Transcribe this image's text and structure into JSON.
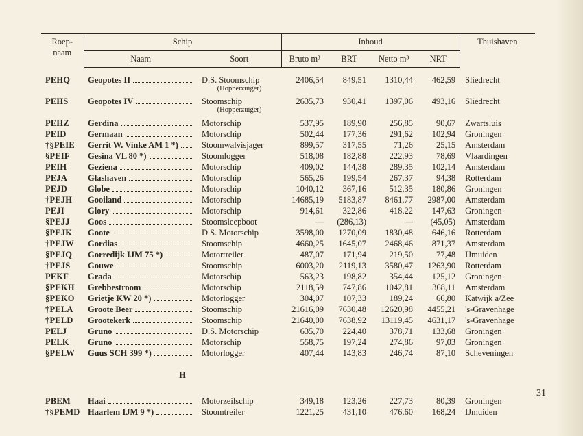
{
  "header": {
    "roepnaam": "Roep-\nnaam",
    "schip": "Schip",
    "naam": "Naam",
    "soort": "Soort",
    "inhoud": "Inhoud",
    "bruto": "Bruto m³",
    "brt": "BRT",
    "netto": "Netto m³",
    "nrt": "NRT",
    "thuishaven": "Thuishaven"
  },
  "section_letter": "H",
  "page_number": "31",
  "rows": [
    {
      "roep": "PEHQ",
      "naam": "Geopotes II",
      "soort": "D.S. Stoomschip",
      "soort_sub": "(Hopperzuiger)",
      "bruto": "2406,54",
      "brt": "849,51",
      "netto": "1310,44",
      "nrt": "462,59",
      "haven": "Sliedrecht",
      "gap_after": true
    },
    {
      "roep": "PEHS",
      "naam": "Geopotes IV",
      "soort": "Stoomschip",
      "soort_sub": "(Hopperzuiger)",
      "bruto": "2635,73",
      "brt": "930,41",
      "netto": "1397,06",
      "nrt": "493,16",
      "haven": "Sliedrecht",
      "gap_after": true
    },
    {
      "roep": "PEHZ",
      "naam": "Gerdina",
      "soort": "Motorschip",
      "bruto": "537,95",
      "brt": "189,90",
      "netto": "256,85",
      "nrt": "90,67",
      "haven": "Zwartsluis"
    },
    {
      "roep": "PEID",
      "naam": "Germaan",
      "soort": "Motorschip",
      "bruto": "502,44",
      "brt": "177,36",
      "netto": "291,62",
      "nrt": "102,94",
      "haven": "Groningen"
    },
    {
      "roep": "†§PEIE",
      "naam": "Gerrit W. Vinke AM 1 *)",
      "soort": "Stoomwalvisjager",
      "bruto": "899,57",
      "brt": "317,55",
      "netto": "71,26",
      "nrt": "25,15",
      "haven": "Amsterdam"
    },
    {
      "roep": "§PEIF",
      "naam": "Gesina VL 80 *)",
      "soort": "Stoomlogger",
      "bruto": "518,08",
      "brt": "182,88",
      "netto": "222,93",
      "nrt": "78,69",
      "haven": "Vlaardingen"
    },
    {
      "roep": "PEIH",
      "naam": "Geziena",
      "soort": "Motorschip",
      "bruto": "409,02",
      "brt": "144,38",
      "netto": "289,35",
      "nrt": "102,14",
      "haven": "Amsterdam"
    },
    {
      "roep": "PEJA",
      "naam": "Glashaven",
      "soort": "Motorschip",
      "bruto": "565,26",
      "brt": "199,54",
      "netto": "267,37",
      "nrt": "94,38",
      "haven": "Rotterdam"
    },
    {
      "roep": "PEJD",
      "naam": "Globe",
      "soort": "Motorschip",
      "bruto": "1040,12",
      "brt": "367,16",
      "netto": "512,35",
      "nrt": "180,86",
      "haven": "Groningen"
    },
    {
      "roep": "†PEJH",
      "naam": "Gooiland",
      "soort": "Motorschip",
      "bruto": "14685,19",
      "brt": "5183,87",
      "netto": "8461,77",
      "nrt": "2987,00",
      "haven": "Amsterdam"
    },
    {
      "roep": "PEJI",
      "naam": "Glory",
      "soort": "Motorschip",
      "bruto": "914,61",
      "brt": "322,86",
      "netto": "418,22",
      "nrt": "147,63",
      "haven": "Groningen"
    },
    {
      "roep": "§PEJJ",
      "naam": "Goos",
      "soort": "Stoomsleepboot",
      "bruto": "—",
      "brt": "(286,13)",
      "netto": "—",
      "nrt": "(45,05)",
      "haven": "Amsterdam"
    },
    {
      "roep": "§PEJK",
      "naam": "Goote",
      "soort": "D.S. Motorschip",
      "bruto": "3598,00",
      "brt": "1270,09",
      "netto": "1830,48",
      "nrt": "646,16",
      "haven": "Rotterdam"
    },
    {
      "roep": "†PEJW",
      "naam": "Gordias",
      "soort": "Stoomschip",
      "bruto": "4660,25",
      "brt": "1645,07",
      "netto": "2468,46",
      "nrt": "871,37",
      "haven": "Amsterdam"
    },
    {
      "roep": "§PEJQ",
      "naam": "Gorredijk IJM 75 *)",
      "soort": "Motortreiler",
      "bruto": "487,07",
      "brt": "171,94",
      "netto": "219,50",
      "nrt": "77,48",
      "haven": "IJmuiden"
    },
    {
      "roep": "†PEJS",
      "naam": "Gouwe",
      "soort": "Stoomschip",
      "bruto": "6003,20",
      "brt": "2119,13",
      "netto": "3580,47",
      "nrt": "1263,90",
      "haven": "Rotterdam"
    },
    {
      "roep": "PEKF",
      "naam": "Grada",
      "soort": "Motorschip",
      "bruto": "563,23",
      "brt": "198,82",
      "netto": "354,44",
      "nrt": "125,12",
      "haven": "Groningen"
    },
    {
      "roep": "§PEKH",
      "naam": "Grebbestroom",
      "soort": "Motorschip",
      "bruto": "2118,59",
      "brt": "747,86",
      "netto": "1042,81",
      "nrt": "368,11",
      "haven": "Amsterdam"
    },
    {
      "roep": "§PEKO",
      "naam": "Grietje KW 20 *)",
      "soort": "Motorlogger",
      "bruto": "304,07",
      "brt": "107,33",
      "netto": "189,24",
      "nrt": "66,80",
      "haven": "Katwijk a/Zee"
    },
    {
      "roep": "†PELA",
      "naam": "Groote Beer",
      "soort": "Stoomschip",
      "bruto": "21616,09",
      "brt": "7630,48",
      "netto": "12620,98",
      "nrt": "4455,21",
      "haven": "'s-Gravenhage"
    },
    {
      "roep": "†PELD",
      "naam": "Grootekerk",
      "soort": "Stoomschip",
      "bruto": "21640,00",
      "brt": "7638,92",
      "netto": "13119,45",
      "nrt": "4631,17",
      "haven": "'s-Gravenhage"
    },
    {
      "roep": "PELJ",
      "naam": "Gruno",
      "soort": "D.S. Motorschip",
      "bruto": "635,70",
      "brt": "224,40",
      "netto": "378,71",
      "nrt": "133,68",
      "haven": "Groningen"
    },
    {
      "roep": "PELK",
      "naam": "Gruno",
      "soort": "Motorschip",
      "bruto": "558,75",
      "brt": "197,24",
      "netto": "274,86",
      "nrt": "97,03",
      "haven": "Groningen"
    },
    {
      "roep": "§PELW",
      "naam": "Guus SCH 399 *)",
      "soort": "Motorlogger",
      "bruto": "407,44",
      "brt": "143,83",
      "netto": "246,74",
      "nrt": "87,10",
      "haven": "Scheveningen"
    }
  ],
  "rows_h": [
    {
      "roep": "PBEM",
      "naam": "Haai",
      "soort": "Motorzeilschip",
      "bruto": "349,18",
      "brt": "123,26",
      "netto": "227,73",
      "nrt": "80,39",
      "haven": "Groningen"
    },
    {
      "roep": "†§PEMD",
      "naam": "Haarlem IJM 9 *)",
      "soort": "Stoomtreiler",
      "bruto": "1221,25",
      "brt": "431,10",
      "netto": "476,60",
      "nrt": "168,24",
      "haven": "IJmuiden"
    }
  ]
}
